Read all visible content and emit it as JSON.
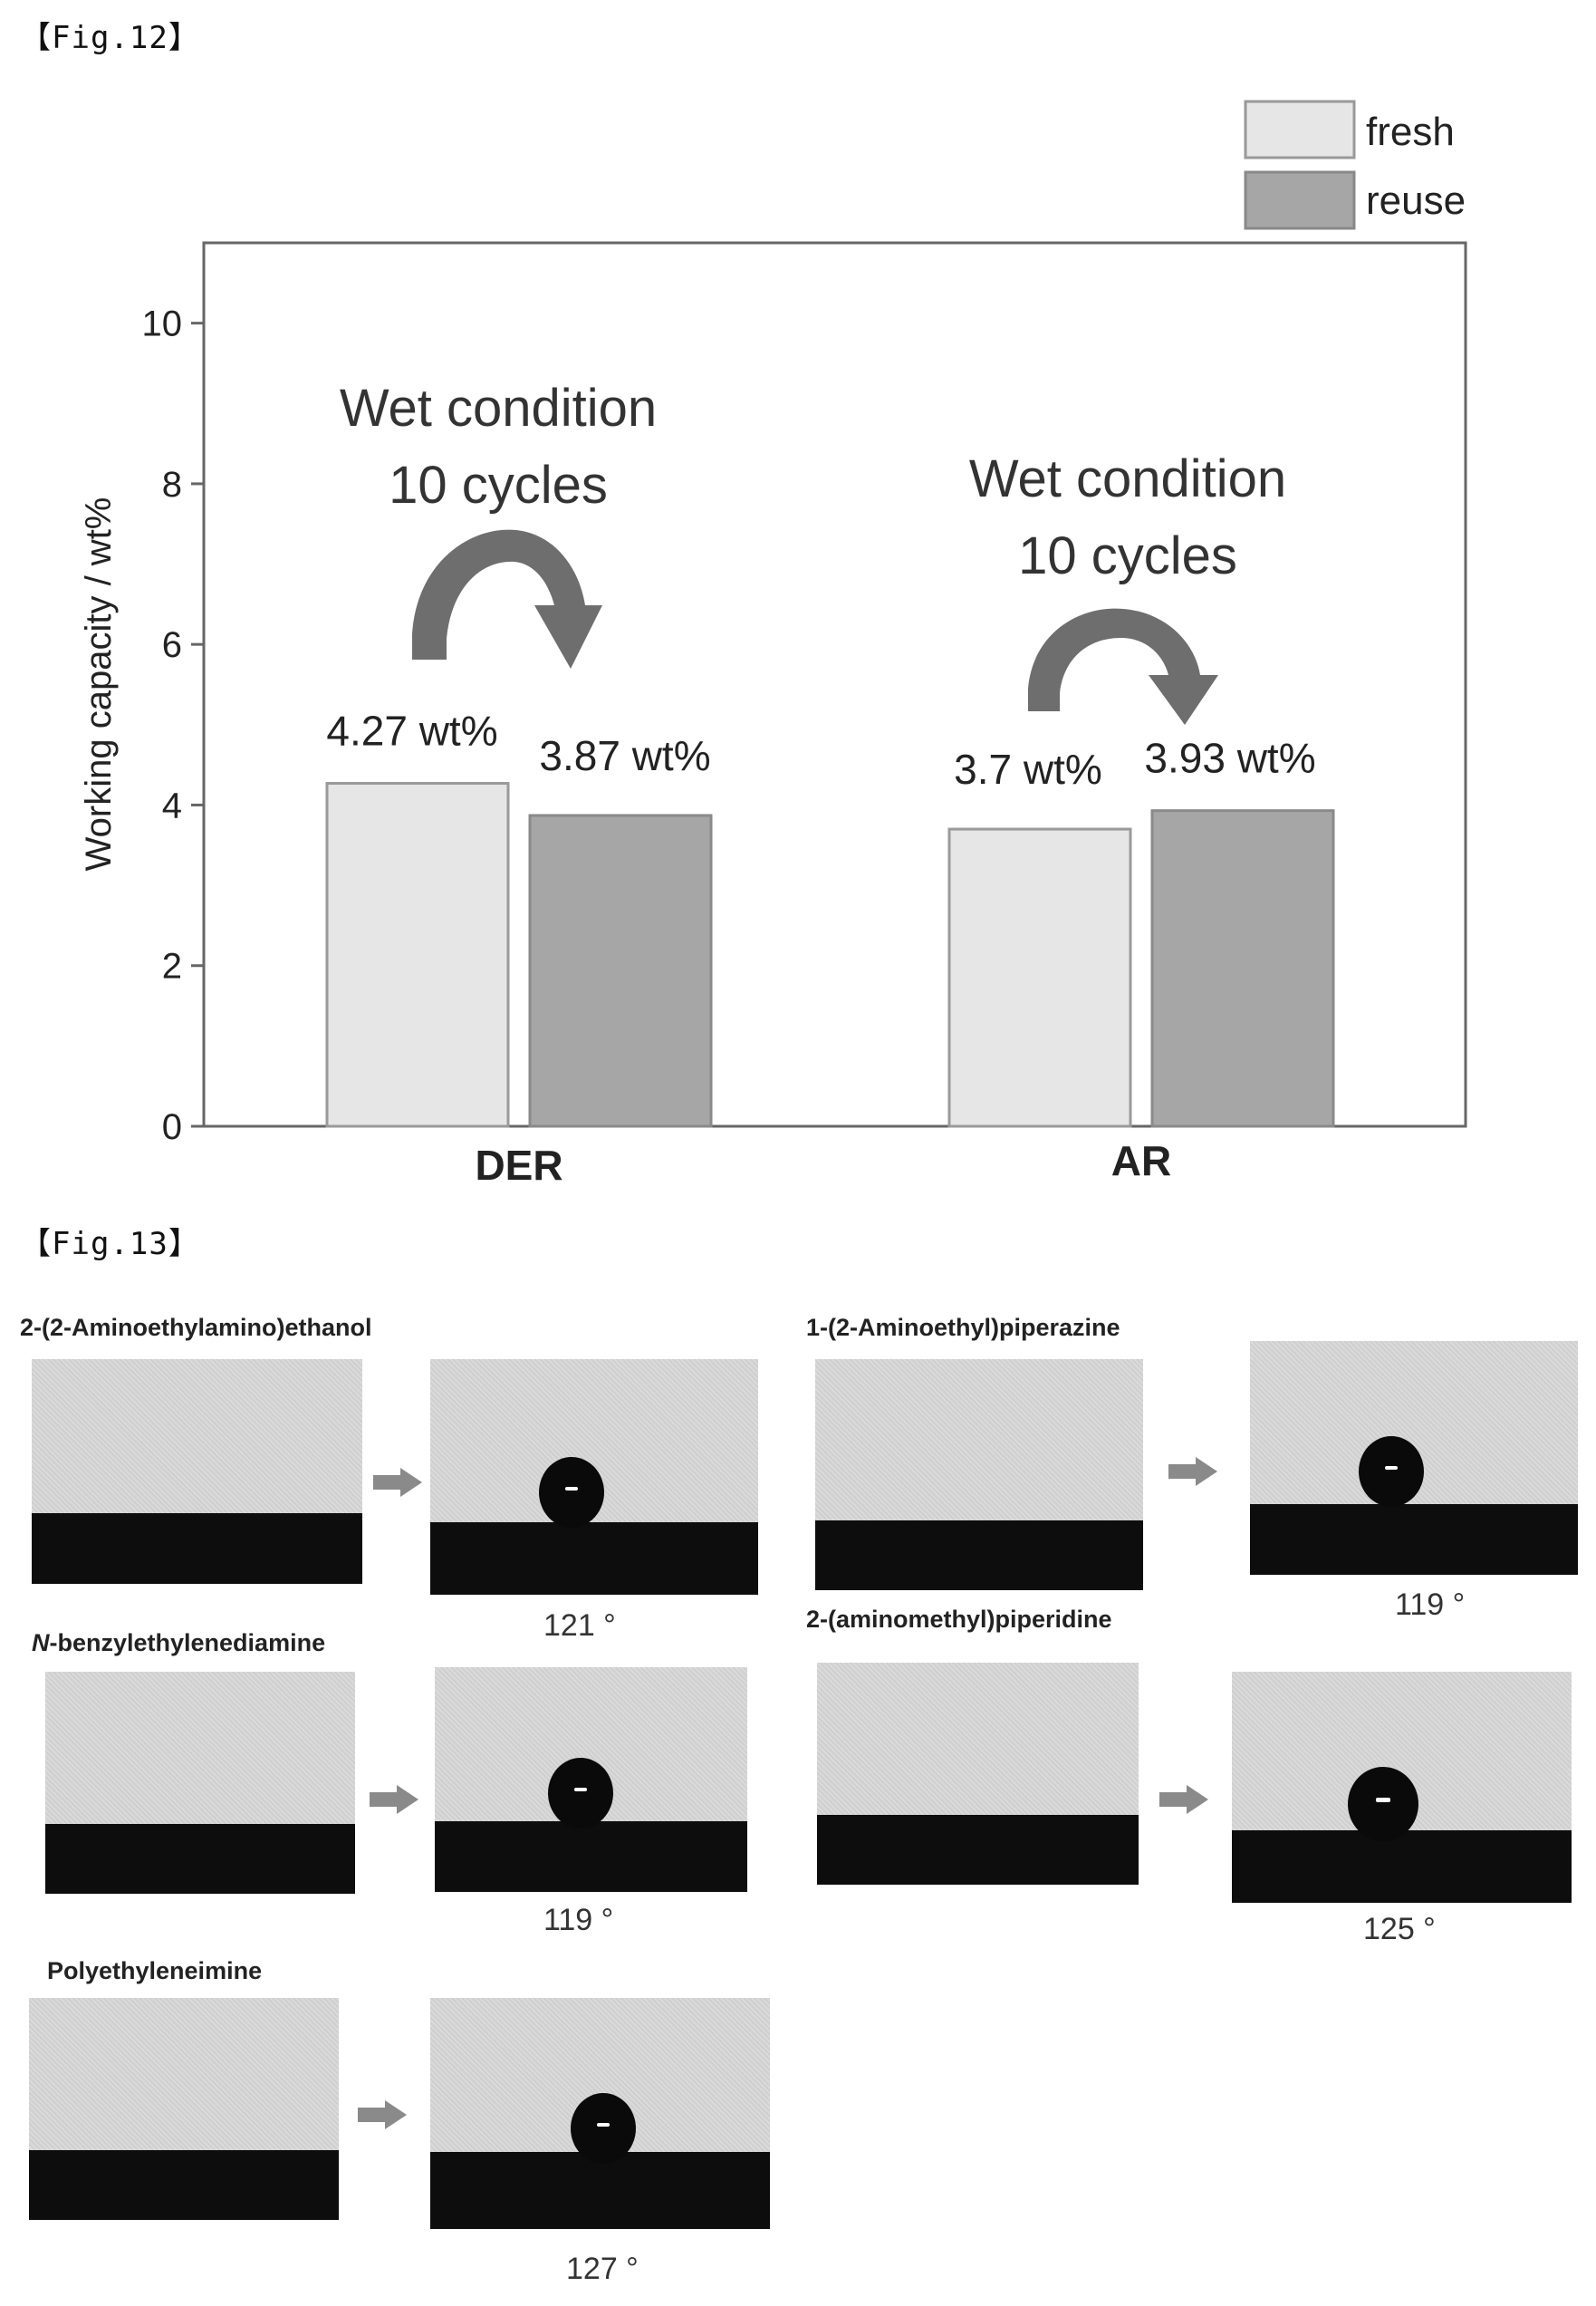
{
  "figures": {
    "fig12_label": "【Fig.12】",
    "fig13_label": "【Fig.13】"
  },
  "chart_data": {
    "type": "bar",
    "categories": [
      "DER",
      "AR"
    ],
    "series": [
      {
        "name": "fresh",
        "values": [
          4.27,
          3.7
        ],
        "color": "#e6e6e6"
      },
      {
        "name": "reuse",
        "values": [
          3.87,
          3.93
        ],
        "color": "#a6a6a6"
      }
    ],
    "ylabel": "Working capacity / wt%",
    "ylim": [
      0,
      11
    ],
    "yticks": [
      0,
      2,
      4,
      6,
      8,
      10
    ],
    "legend": "top-right, outside plot",
    "grid": false,
    "data_labels": [
      [
        "4.27 wt%",
        "3.87 wt%"
      ],
      [
        "3.7 wt%",
        "3.93 wt%"
      ]
    ],
    "annotations": [
      {
        "line1": "Wet condition",
        "line2": "10 cycles",
        "category": "DER"
      },
      {
        "line1": "Wet condition",
        "line2": "10 cycles",
        "category": "AR"
      }
    ]
  },
  "fig13": {
    "panels": [
      {
        "title_prefix": "",
        "title": "2-(2-Aminoethylamino)ethanol",
        "angle": "121 °"
      },
      {
        "title_prefix": "",
        "title": "1-(2-Aminoethyl)piperazine",
        "angle": "119 °"
      },
      {
        "title_prefix": "N",
        "title": "-benzylethylenediamine",
        "angle": "119 °"
      },
      {
        "title_prefix": "",
        "title": "2-(aminomethyl)piperidine",
        "angle": "125 °"
      },
      {
        "title_prefix": "",
        "title": "Polyethyleneimine",
        "angle": "127 °"
      }
    ]
  },
  "colors": {
    "fresh_bar": "#e6e6e6",
    "reuse_bar": "#a6a6a6",
    "curved_arrow": "#6e6e6e",
    "ground": "#0d0d0d"
  }
}
